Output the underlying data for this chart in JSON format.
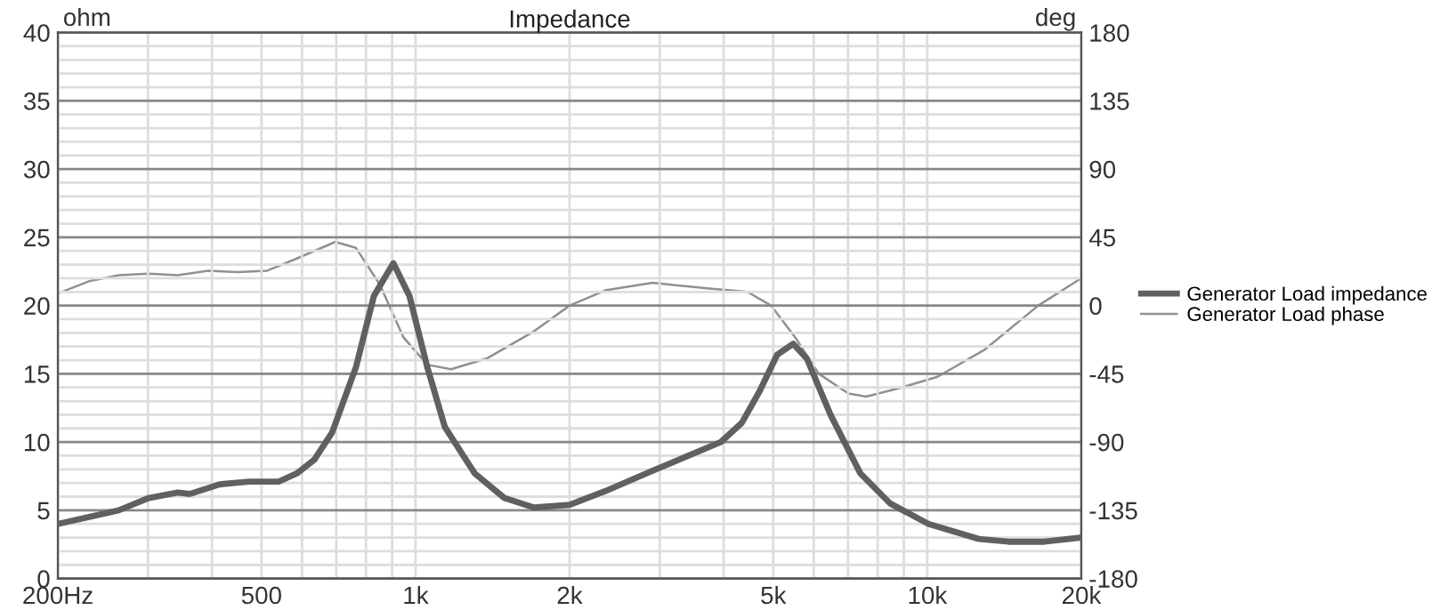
{
  "chart_data": {
    "type": "line",
    "title": "Impedance",
    "ylabel": "ohm",
    "y2label": "deg",
    "log": "x",
    "xlim": [
      200,
      20000
    ],
    "xticks": [
      {
        "value": 200,
        "label": "200Hz"
      },
      500,
      {
        "value": 1000,
        "label": "1k"
      },
      {
        "value": 2000,
        "label": "2k"
      },
      {
        "value": 5000,
        "label": "5k"
      },
      {
        "value": 10000,
        "label": "10k"
      },
      {
        "value": 20000,
        "label": "20k"
      }
    ],
    "ylim": [
      0,
      40
    ],
    "yticks": [
      0,
      5,
      10,
      15,
      20,
      25,
      30,
      35,
      40
    ],
    "y2lim": [
      -180,
      180
    ],
    "y2ticks": [
      -180,
      -135,
      -90,
      -45,
      0,
      45,
      90,
      135,
      180
    ],
    "grid": true,
    "legend": "right",
    "line_style": "solid",
    "marker": "none",
    "series": [
      {
        "name": "Generator Load impedance",
        "color": "#606060",
        "x": [
          200,
          263,
          301,
          343,
          362,
          414,
          473,
          540,
          586,
          634,
          687,
          765,
          829,
          905,
          973,
          1054,
          1141,
          1305,
          1491,
          1704,
          2000,
          2348,
          2906,
          3950,
          4340,
          4700,
          5090,
          5470,
          5820,
          6470,
          7400,
          8460,
          10060,
          12620,
          14420,
          16930,
          20000
        ],
        "values": [
          4,
          5,
          5.9,
          6.3,
          6.2,
          6.9,
          7.1,
          7.1,
          7.7,
          8.7,
          10.7,
          15.5,
          20.7,
          23.1,
          20.7,
          15.5,
          11.1,
          7.7,
          5.9,
          5.2,
          5.4,
          6.4,
          7.9,
          10,
          11.4,
          13.7,
          16.4,
          17.2,
          16.1,
          12,
          7.7,
          5.5,
          4,
          2.9,
          2.7,
          2.7,
          3
        ]
      },
      {
        "name": "Generator Load phase",
        "color": "#909090",
        "axis": "y2",
        "x": [
          200,
          230,
          263,
          301,
          343,
          393,
          449,
          513,
          586,
          697,
          765,
          851,
          947,
          1054,
          1173,
          1376,
          1704,
          2000,
          2348,
          2906,
          3796,
          4455,
          4950,
          5520,
          6140,
          7010,
          7600,
          8920,
          10470,
          12960,
          16480,
          20000
        ],
        "values": [
          8,
          16,
          20,
          21,
          20,
          23,
          22,
          23,
          31,
          42,
          38,
          14,
          -21,
          -39,
          -42,
          -35,
          -17,
          0,
          10,
          15,
          11,
          9,
          0,
          -21,
          -45,
          -58,
          -60,
          -54,
          -47,
          -29,
          0,
          18
        ]
      }
    ]
  }
}
